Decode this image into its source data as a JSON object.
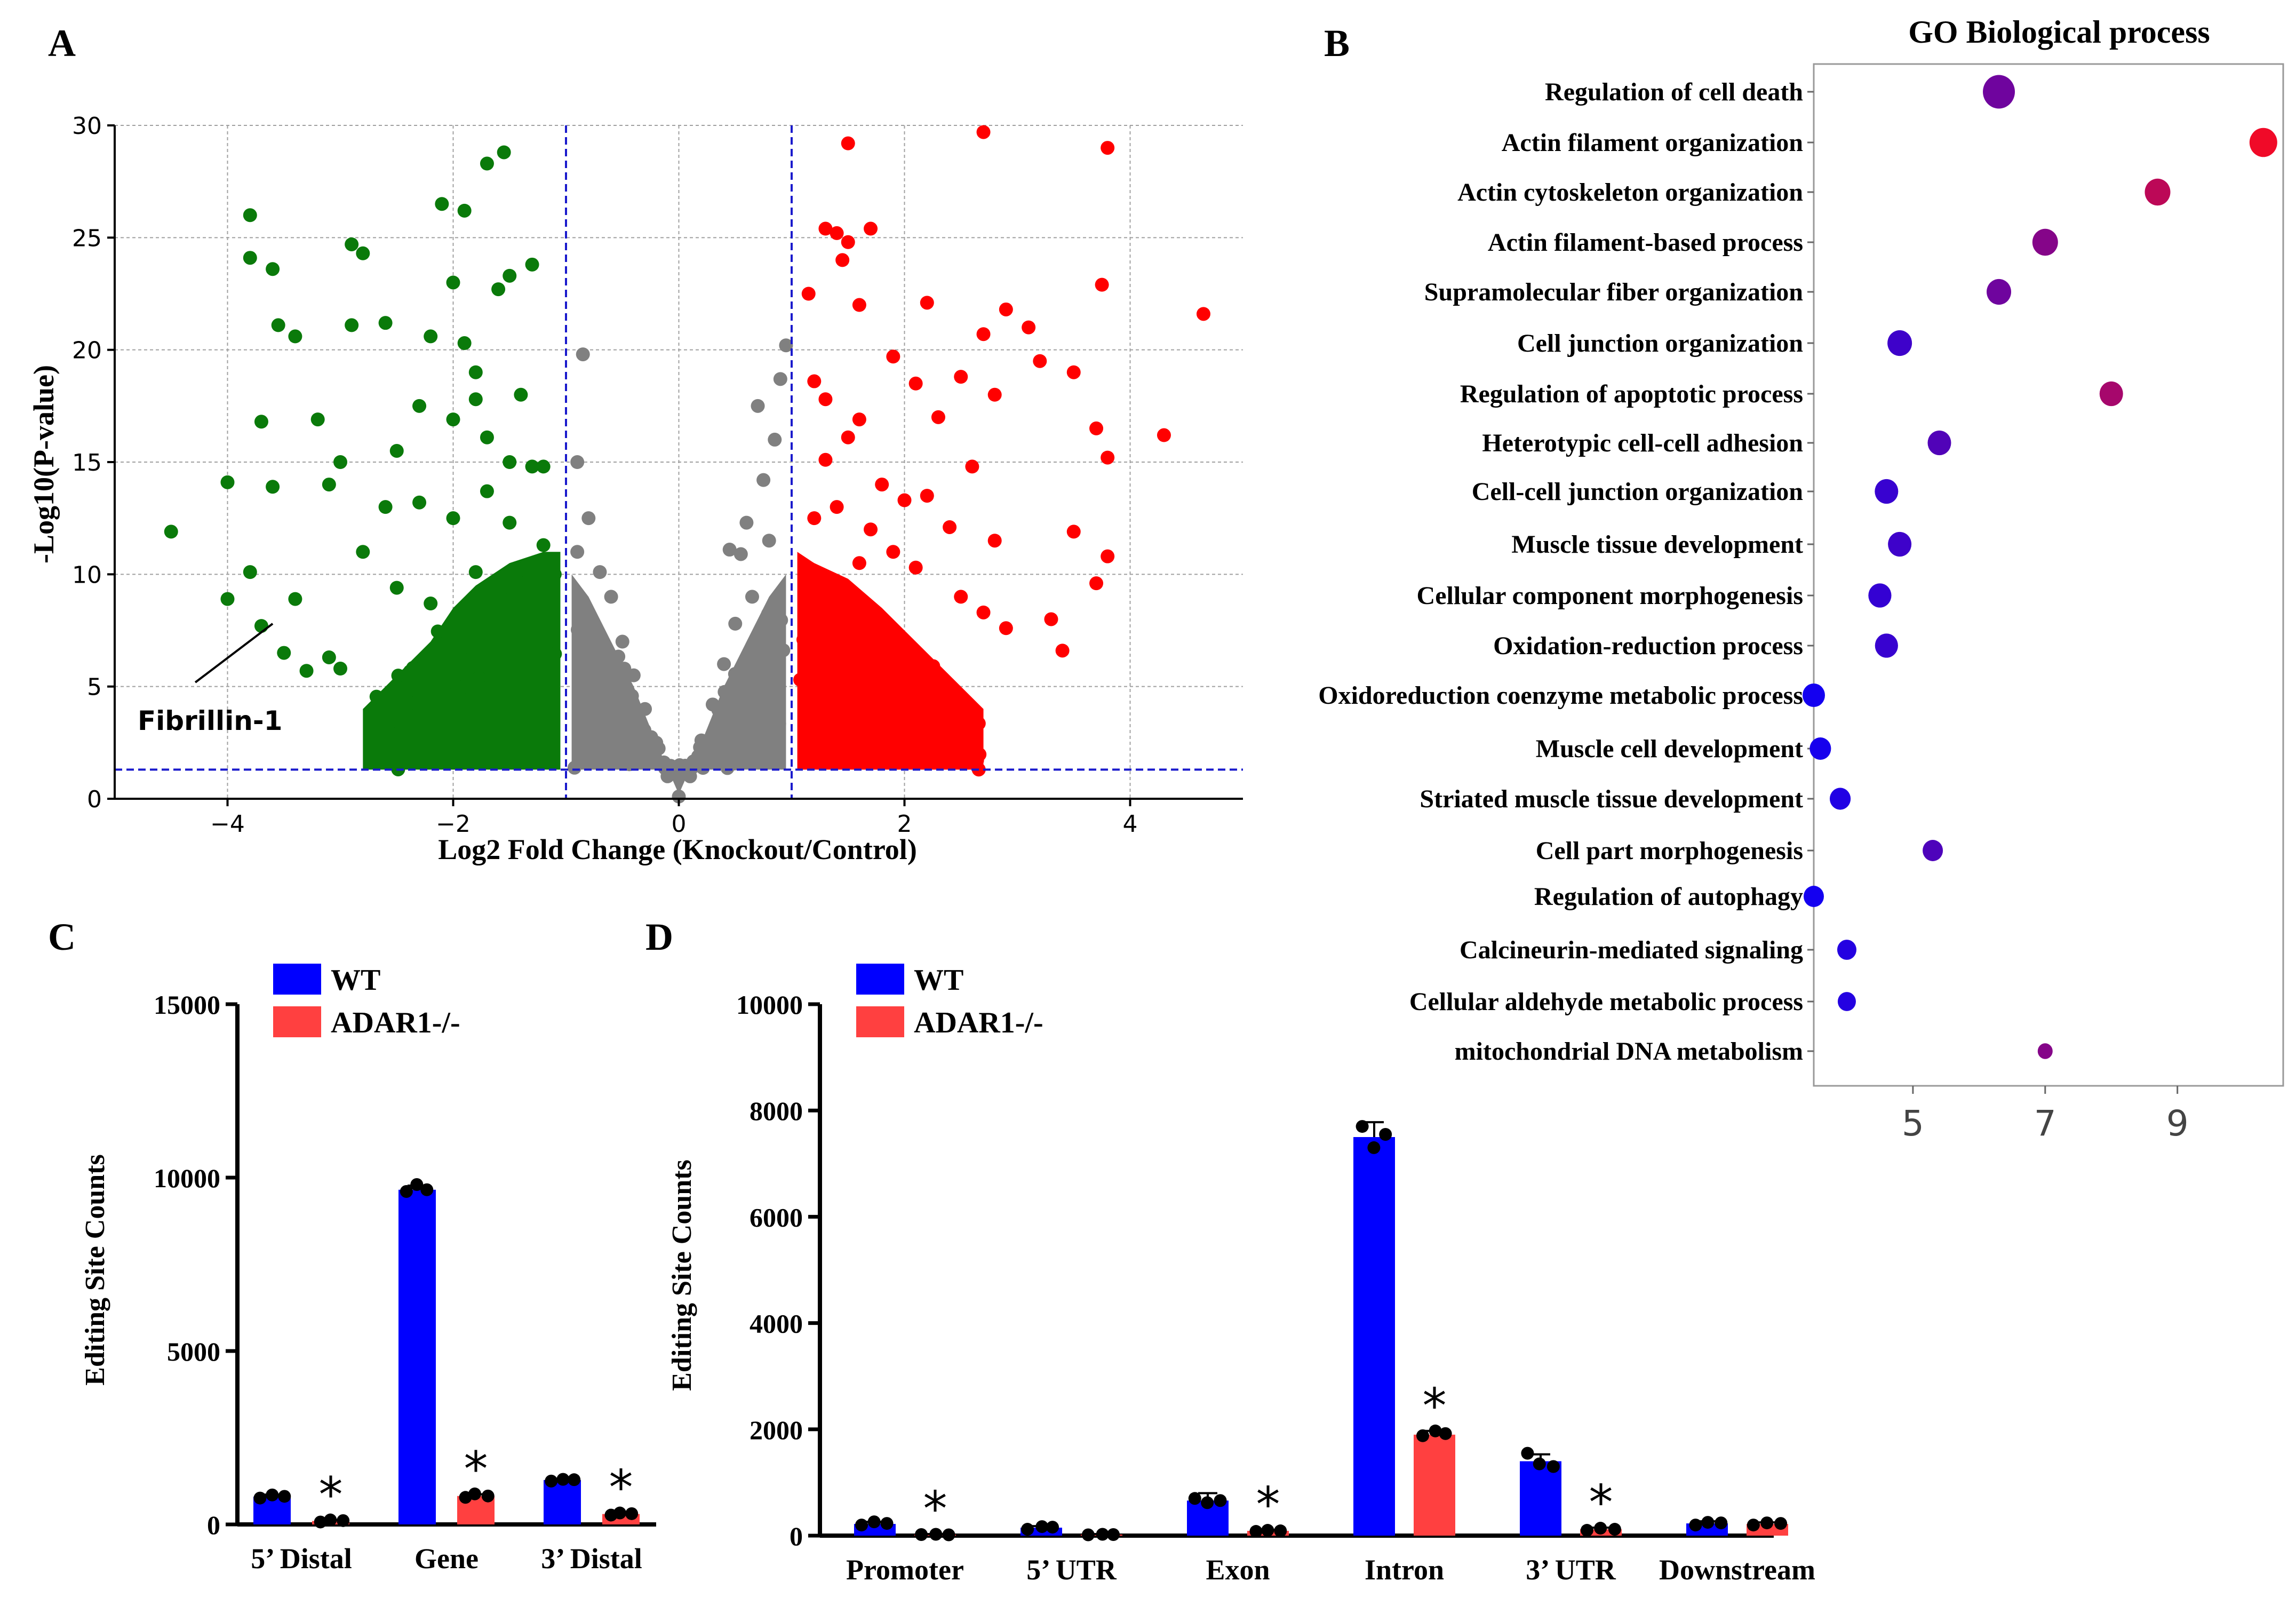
{
  "panels": {
    "a": "A",
    "b": "B",
    "c": "C",
    "d": "D"
  },
  "colors": {
    "up": "#ff0000",
    "down": "#0a7a0a",
    "ns": "#808080",
    "threshold": "#1a1acc",
    "wt": "#0000ff",
    "ko": "#ff4040",
    "dot": "#000000",
    "grid": "#a0a0a0"
  },
  "chart_data": [
    {
      "id": "volcano",
      "type": "scatter",
      "title": "",
      "xlabel": "Log2 Fold Change (Knockout/Control)",
      "ylabel": "-Log10(P-value)",
      "xlim": [
        -5,
        5
      ],
      "ylim": [
        0,
        30
      ],
      "xticks": [
        -4,
        -2,
        0,
        2,
        4
      ],
      "xtick_labels": [
        "−4",
        "−2",
        "0",
        "2",
        "4"
      ],
      "yticks": [
        0,
        5,
        10,
        15,
        20,
        25,
        30
      ],
      "thresholds": {
        "log2fc": [
          -1,
          1
        ],
        "neg_log10_p": 1.3
      },
      "grid": true,
      "annotation": {
        "text": "Fibrillin-1",
        "x": -3.6,
        "y": 7.8
      },
      "series": [
        {
          "name": "down",
          "points": [
            [
              -4.5,
              11.9
            ],
            [
              -3.8,
              26
            ],
            [
              -3.6,
              23.6
            ],
            [
              -3.8,
              24.1
            ],
            [
              -3.7,
              16.8
            ],
            [
              -3.55,
              21.1
            ],
            [
              -3.4,
              20.6
            ],
            [
              -4.0,
              14.1
            ],
            [
              -3.6,
              13.9
            ],
            [
              -3.2,
              16.9
            ],
            [
              -3.0,
              15.0
            ],
            [
              -3.1,
              14.0
            ],
            [
              -4.0,
              8.9
            ],
            [
              -3.8,
              10.1
            ],
            [
              -3.7,
              7.7
            ],
            [
              -3.4,
              8.9
            ],
            [
              -3.5,
              6.5
            ],
            [
              -3.3,
              5.7
            ],
            [
              -3.1,
              6.3
            ],
            [
              -3.0,
              5.8
            ],
            [
              -2.9,
              24.7
            ],
            [
              -2.9,
              21.1
            ],
            [
              -2.8,
              24.3
            ],
            [
              -2.6,
              21.2
            ],
            [
              -2.2,
              20.6
            ],
            [
              -2.1,
              26.5
            ],
            [
              -1.9,
              26.2
            ],
            [
              -2.0,
              23.0
            ],
            [
              -1.9,
              20.3
            ],
            [
              -1.7,
              28.3
            ],
            [
              -1.55,
              28.8
            ],
            [
              -1.6,
              22.7
            ],
            [
              -1.3,
              23.8
            ],
            [
              -1.5,
              23.3
            ],
            [
              -1.8,
              19.0
            ],
            [
              -1.4,
              18.0
            ],
            [
              -2.3,
              17.5
            ],
            [
              -2.5,
              15.5
            ],
            [
              -2.0,
              16.9
            ],
            [
              -1.8,
              17.8
            ],
            [
              -1.7,
              16.1
            ],
            [
              -1.5,
              15.0
            ],
            [
              -1.3,
              14.8
            ],
            [
              -1.2,
              14.8
            ],
            [
              -2.6,
              13.0
            ],
            [
              -2.3,
              13.2
            ],
            [
              -2.0,
              12.5
            ],
            [
              -1.7,
              13.7
            ],
            [
              -1.5,
              12.3
            ],
            [
              -1.2,
              11.3
            ],
            [
              -2.8,
              11.0
            ],
            [
              -2.5,
              9.4
            ],
            [
              -2.2,
              8.7
            ],
            [
              -1.8,
              10.1
            ],
            [
              -1.6,
              9.1
            ],
            [
              -1.4,
              10.2
            ],
            [
              -1.1,
              10.0
            ]
          ]
        },
        {
          "name": "up",
          "points": [
            [
              1.5,
              29.2
            ],
            [
              2.7,
              29.7
            ],
            [
              3.8,
              29.0
            ],
            [
              1.3,
              25.4
            ],
            [
              1.4,
              25.2
            ],
            [
              1.7,
              25.4
            ],
            [
              1.5,
              24.8
            ],
            [
              1.45,
              24.0
            ],
            [
              1.15,
              22.5
            ],
            [
              1.6,
              22.0
            ],
            [
              2.2,
              22.1
            ],
            [
              2.9,
              21.8
            ],
            [
              3.1,
              21.0
            ],
            [
              3.75,
              22.9
            ],
            [
              4.65,
              21.6
            ],
            [
              2.7,
              20.7
            ],
            [
              3.2,
              19.5
            ],
            [
              1.9,
              19.7
            ],
            [
              2.1,
              18.5
            ],
            [
              2.5,
              18.8
            ],
            [
              2.8,
              18.0
            ],
            [
              3.5,
              19.0
            ],
            [
              2.3,
              17.0
            ],
            [
              1.6,
              16.9
            ],
            [
              4.3,
              16.2
            ],
            [
              3.7,
              16.5
            ],
            [
              3.8,
              15.2
            ],
            [
              2.6,
              14.8
            ],
            [
              1.2,
              18.6
            ],
            [
              1.3,
              17.8
            ],
            [
              1.5,
              16.1
            ],
            [
              1.8,
              14.0
            ],
            [
              2.0,
              13.3
            ],
            [
              2.2,
              13.5
            ],
            [
              2.4,
              12.1
            ],
            [
              2.8,
              11.5
            ],
            [
              3.5,
              11.9
            ],
            [
              3.8,
              10.8
            ],
            [
              3.7,
              9.6
            ],
            [
              3.3,
              8.0
            ],
            [
              3.4,
              6.6
            ],
            [
              1.3,
              15.1
            ],
            [
              1.4,
              13.0
            ],
            [
              1.7,
              12.0
            ],
            [
              1.9,
              11.0
            ],
            [
              2.1,
              10.3
            ],
            [
              2.5,
              9.0
            ],
            [
              2.7,
              8.3
            ],
            [
              2.9,
              7.6
            ],
            [
              1.2,
              12.5
            ],
            [
              1.6,
              10.5
            ]
          ]
        },
        {
          "name": "ns",
          "points": [
            [
              -0.85,
              19.8
            ],
            [
              -0.9,
              15.0
            ],
            [
              -0.8,
              12.5
            ],
            [
              -0.7,
              10.1
            ],
            [
              -0.6,
              9.0
            ],
            [
              -0.9,
              11.0
            ],
            [
              -0.5,
              7.0
            ],
            [
              -0.4,
              5.5
            ],
            [
              -0.3,
              4.0
            ],
            [
              -0.2,
              2.5
            ],
            [
              -0.1,
              1.0
            ],
            [
              0.0,
              0.1
            ],
            [
              0.1,
              1.0
            ],
            [
              0.2,
              2.6
            ],
            [
              0.3,
              4.2
            ],
            [
              0.4,
              6.0
            ],
            [
              0.5,
              7.8
            ],
            [
              0.55,
              10.9
            ],
            [
              0.6,
              12.3
            ],
            [
              0.75,
              14.2
            ],
            [
              0.85,
              16.0
            ],
            [
              0.9,
              18.7
            ],
            [
              0.95,
              20.2
            ],
            [
              0.7,
              17.5
            ],
            [
              0.45,
              11.1
            ],
            [
              0.65,
              9.0
            ],
            [
              0.8,
              11.5
            ]
          ]
        }
      ],
      "density_bands": {
        "down": [
          [
            -2.8,
            4.0
          ],
          [
            -2.5,
            5.5
          ],
          [
            -2.2,
            7.0
          ],
          [
            -2.0,
            8.5
          ],
          [
            -1.8,
            9.5
          ],
          [
            -1.5,
            10.5
          ],
          [
            -1.2,
            11.0
          ],
          [
            -1.05,
            11.0
          ]
        ],
        "ns_left": [
          [
            -0.95,
            10.0
          ],
          [
            -0.8,
            9.0
          ],
          [
            -0.6,
            7.0
          ],
          [
            -0.4,
            5.0
          ],
          [
            -0.2,
            2.5
          ],
          [
            0.0,
            0.2
          ]
        ],
        "ns_right": [
          [
            0.0,
            0.2
          ],
          [
            0.2,
            2.5
          ],
          [
            0.4,
            5.0
          ],
          [
            0.6,
            7.0
          ],
          [
            0.8,
            9.0
          ],
          [
            0.95,
            10.0
          ]
        ],
        "up": [
          [
            1.05,
            11.0
          ],
          [
            1.2,
            10.5
          ],
          [
            1.5,
            9.8
          ],
          [
            1.8,
            8.5
          ],
          [
            2.1,
            7.0
          ],
          [
            2.4,
            5.5
          ],
          [
            2.7,
            4.0
          ]
        ]
      }
    },
    {
      "id": "go",
      "type": "scatter",
      "title": "GO Biological process",
      "xlim": [
        3.5,
        10.6
      ],
      "xticks": [
        5,
        7,
        9
      ],
      "categories": [
        "Regulation of cell death",
        "Actin filament organization",
        "Actin cytoskeleton organization",
        "Actin filament-based process",
        "Supramolecular fiber organization",
        "Cell junction organization",
        "Regulation of apoptotic process",
        "Heterotypic cell-cell adhesion",
        "Cell-cell junction organization",
        "Muscle tissue development",
        "Cellular component morphogenesis",
        "Oxidation-reduction process",
        "Oxidoreduction coenzyme metabolic process",
        "Muscle cell development",
        "Striated muscle tissue development",
        "Cell part morphogenesis",
        "Regulation of autophagy",
        "Calcineurin-mediated signaling",
        "Cellular aldehyde metabolic process",
        "mitochondrial DNA metabolism"
      ],
      "values": [
        6.3,
        10.3,
        8.7,
        7.0,
        6.3,
        4.8,
        8.0,
        5.4,
        4.6,
        4.8,
        4.5,
        4.6,
        3.5,
        3.6,
        3.9,
        5.3,
        3.5,
        4.0,
        4.0,
        7.0
      ],
      "sizes": [
        1.3,
        1.1,
        1.0,
        1.0,
        0.95,
        0.95,
        0.9,
        0.9,
        0.9,
        0.9,
        0.88,
        0.88,
        0.85,
        0.8,
        0.78,
        0.75,
        0.75,
        0.7,
        0.65,
        0.5
      ]
    },
    {
      "id": "barC",
      "type": "bar",
      "ylabel": "Editing Site Counts",
      "ylim": [
        0,
        15000
      ],
      "yticks": [
        0,
        5000,
        10000,
        15000
      ],
      "categories": [
        "5’ Distal",
        "Gene",
        "3’ Distal"
      ],
      "series": [
        {
          "name": "WT",
          "values": [
            800,
            9650,
            1280
          ],
          "err": [
            60,
            120,
            40
          ],
          "points": [
            [
              760,
              850,
              810
            ],
            [
              9600,
              9800,
              9650
            ],
            [
              1250,
              1300,
              1290
            ]
          ]
        },
        {
          "name": "ADAR1-/-",
          "values": [
            100,
            820,
            300
          ],
          "err": [
            30,
            50,
            40
          ],
          "points": [
            [
              70,
              130,
              110
            ],
            [
              780,
              880,
              820
            ],
            [
              270,
              330,
              310
            ]
          ]
        }
      ],
      "significance": [
        "*",
        "*",
        "*"
      ]
    },
    {
      "id": "barD",
      "type": "bar",
      "ylabel": "Editing Site Counts",
      "ylim": [
        0,
        10000
      ],
      "yticks": [
        0,
        2000,
        4000,
        6000,
        8000,
        10000
      ],
      "categories": [
        "Promoter",
        "5’ UTR",
        "Exon",
        "Intron",
        "3’ UTR",
        "Downstream"
      ],
      "series": [
        {
          "name": "WT",
          "values": [
            220,
            150,
            660,
            7500,
            1400,
            230
          ],
          "err": [
            40,
            30,
            140,
            280,
            130,
            40
          ],
          "points": [
            [
              200,
              260,
              230
            ],
            [
              120,
              170,
              160
            ],
            [
              700,
              620,
              660
            ],
            [
              7700,
              7300,
              7550
            ],
            [
              1550,
              1350,
              1300
            ],
            [
              200,
              250,
              240
            ]
          ]
        },
        {
          "name": "ADAR1-/-",
          "values": [
            20,
            20,
            90,
            1900,
            120,
            220
          ],
          "err": [
            10,
            10,
            20,
            70,
            30,
            30
          ],
          "points": [
            [
              20,
              25,
              15
            ],
            [
              15,
              25,
              20
            ],
            [
              80,
              100,
              90
            ],
            [
              1880,
              1970,
              1920
            ],
            [
              100,
              140,
              120
            ],
            [
              200,
              240,
              230
            ]
          ]
        }
      ],
      "significance": [
        "*",
        "",
        "*",
        "*",
        "*",
        ""
      ]
    }
  ]
}
